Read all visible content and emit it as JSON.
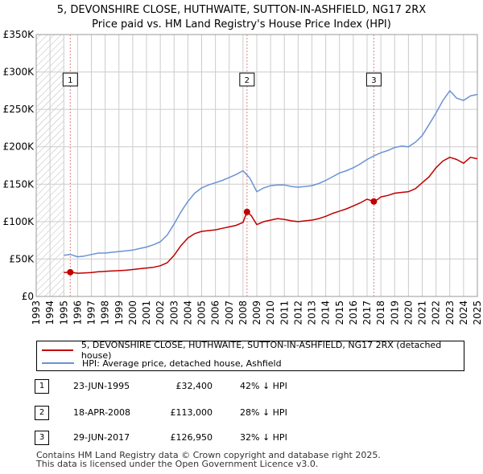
{
  "header": {
    "title_line1": "5, DEVONSHIRE CLOSE, HUTHWAITE, SUTTON-IN-ASHFIELD, NG17 2RX",
    "title_line2": "Price paid vs. HM Land Registry's House Price Index (HPI)"
  },
  "colors": {
    "property": "#c00000",
    "hpi": "#6a93d4",
    "grid": "#cccccc",
    "sale_line": "#e08080"
  },
  "chart_data": {
    "type": "line",
    "title": "5, DEVONSHIRE CLOSE, HUTHWAITE, SUTTON-IN-ASHFIELD, NG17 2RX — Price paid vs. HM Land Registry's House Price Index (HPI)",
    "xlabel": "",
    "ylabel": "",
    "xlim": [
      1993,
      2025
    ],
    "ylim": [
      0,
      350000
    ],
    "x_ticks": [
      1993,
      1994,
      1995,
      1996,
      1997,
      1998,
      1999,
      2000,
      2001,
      2002,
      2003,
      2004,
      2005,
      2006,
      2007,
      2008,
      2009,
      2010,
      2011,
      2012,
      2013,
      2014,
      2015,
      2016,
      2017,
      2018,
      2019,
      2020,
      2021,
      2022,
      2023,
      2024,
      2025
    ],
    "y_ticks": [
      0,
      50000,
      100000,
      150000,
      200000,
      250000,
      300000,
      350000
    ],
    "y_tick_labels": [
      "£0",
      "£50K",
      "£100K",
      "£150K",
      "£200K",
      "£250K",
      "£300K",
      "£350K"
    ],
    "grid": true,
    "hatched_before": 1995.0,
    "series": [
      {
        "name": "5, DEVONSHIRE CLOSE, HUTHWAITE, SUTTON-IN-ASHFIELD, NG17 2RX (detached house)",
        "x": [
          1995.0,
          1995.47,
          1996.0,
          1996.5,
          1997.0,
          1997.5,
          1998.0,
          1998.5,
          1999.0,
          1999.5,
          2000.0,
          2000.5,
          2001.0,
          2001.5,
          2002.0,
          2002.5,
          2003.0,
          2003.5,
          2004.0,
          2004.5,
          2005.0,
          2005.5,
          2006.0,
          2006.5,
          2007.0,
          2007.5,
          2008.0,
          2008.29,
          2008.6,
          2009.0,
          2009.5,
          2010.0,
          2010.5,
          2011.0,
          2011.5,
          2012.0,
          2012.5,
          2013.0,
          2013.5,
          2014.0,
          2014.5,
          2015.0,
          2015.5,
          2016.0,
          2016.5,
          2017.0,
          2017.49,
          2017.8,
          2018.0,
          2018.5,
          2019.0,
          2019.5,
          2020.0,
          2020.5,
          2021.0,
          2021.5,
          2022.0,
          2022.5,
          2023.0,
          2023.5,
          2024.0,
          2024.5,
          2025.0
        ],
        "y": [
          32000,
          32400,
          31000,
          31500,
          32000,
          33000,
          33500,
          34000,
          34500,
          35000,
          36000,
          37000,
          38000,
          39000,
          41000,
          45000,
          55000,
          68000,
          78000,
          84000,
          87000,
          88000,
          89000,
          91000,
          93000,
          95000,
          99000,
          113000,
          108000,
          96000,
          100000,
          102000,
          104000,
          103000,
          101000,
          100000,
          101000,
          102000,
          104000,
          107000,
          111000,
          114000,
          117000,
          121000,
          125000,
          130000,
          126950,
          130000,
          133000,
          135000,
          138000,
          139000,
          140000,
          144000,
          152000,
          160000,
          172000,
          181000,
          186000,
          183000,
          178000,
          186000,
          184000
        ]
      },
      {
        "name": "HPI: Average price, detached house, Ashfield",
        "x": [
          1995.0,
          1995.5,
          1996.0,
          1996.5,
          1997.0,
          1997.5,
          1998.0,
          1998.5,
          1999.0,
          1999.5,
          2000.0,
          2000.5,
          2001.0,
          2001.5,
          2002.0,
          2002.5,
          2003.0,
          2003.5,
          2004.0,
          2004.5,
          2005.0,
          2005.5,
          2006.0,
          2006.5,
          2007.0,
          2007.5,
          2008.0,
          2008.5,
          2009.0,
          2009.5,
          2010.0,
          2010.5,
          2011.0,
          2011.5,
          2012.0,
          2012.5,
          2013.0,
          2013.5,
          2014.0,
          2014.5,
          2015.0,
          2015.5,
          2016.0,
          2016.5,
          2017.0,
          2017.5,
          2018.0,
          2018.5,
          2019.0,
          2019.5,
          2020.0,
          2020.5,
          2021.0,
          2021.5,
          2022.0,
          2022.5,
          2023.0,
          2023.5,
          2024.0,
          2024.5,
          2025.0
        ],
        "y": [
          55000,
          56000,
          53000,
          54000,
          56000,
          58000,
          58000,
          59000,
          60000,
          61000,
          62000,
          64000,
          66000,
          69000,
          73000,
          82000,
          97000,
          113000,
          127000,
          138000,
          145000,
          149000,
          152000,
          155000,
          159000,
          163000,
          168000,
          158000,
          140000,
          145000,
          148000,
          149000,
          149000,
          147000,
          146000,
          147000,
          148000,
          151000,
          155000,
          160000,
          165000,
          168000,
          172000,
          177000,
          183000,
          188000,
          192000,
          195000,
          199000,
          201000,
          200000,
          206000,
          215000,
          230000,
          245000,
          262000,
          275000,
          265000,
          262000,
          268000,
          270000
        ]
      }
    ],
    "sales": [
      {
        "label": "1",
        "x": 1995.47,
        "y": 32400
      },
      {
        "label": "2",
        "x": 2008.29,
        "y": 113000
      },
      {
        "label": "3",
        "x": 2017.49,
        "y": 126950
      }
    ]
  },
  "legend": {
    "property_label": "5, DEVONSHIRE CLOSE, HUTHWAITE, SUTTON-IN-ASHFIELD, NG17 2RX (detached house)",
    "hpi_label": "HPI: Average price, detached house, Ashfield"
  },
  "sales_table": [
    {
      "num": "1",
      "date": "23-JUN-1995",
      "price": "£32,400",
      "hpi": "42% ↓ HPI"
    },
    {
      "num": "2",
      "date": "18-APR-2008",
      "price": "£113,000",
      "hpi": "28% ↓ HPI"
    },
    {
      "num": "3",
      "date": "29-JUN-2017",
      "price": "£126,950",
      "hpi": "32% ↓ HPI"
    }
  ],
  "footer": {
    "line1": "Contains HM Land Registry data © Crown copyright and database right 2025.",
    "line2": "This data is licensed under the Open Government Licence v3.0."
  }
}
